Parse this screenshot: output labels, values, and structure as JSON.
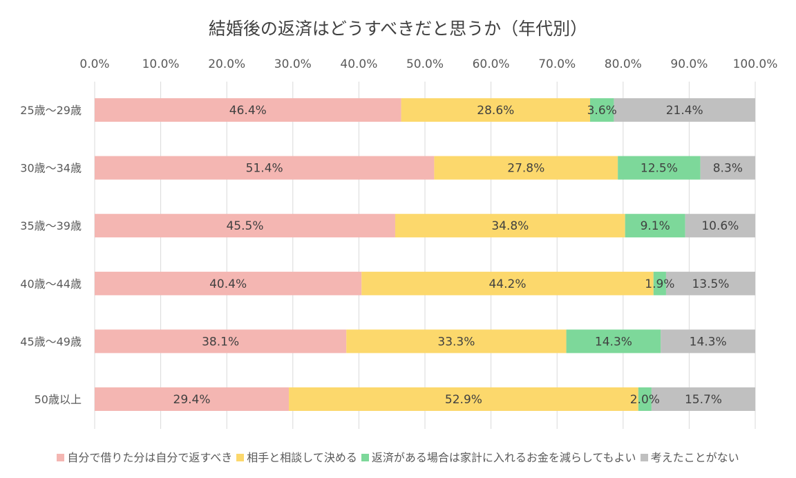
{
  "chart_data": {
    "type": "bar",
    "orientation": "horizontal",
    "stacked": "percent",
    "title": "結婚後の返済はどうすべきだと思うか（年代別）",
    "categories": [
      "25歳〜29歳",
      "30歳〜34歳",
      "35歳〜39歳",
      "40歳〜44歳",
      "45歳〜49歳",
      "50歳以上"
    ],
    "series": [
      {
        "name": "自分で借りた分は自分で返すべき",
        "color": "#F4B6B2",
        "values": [
          46.4,
          51.4,
          45.5,
          40.4,
          38.1,
          29.4
        ],
        "labels": [
          "46.4%",
          "51.4%",
          "45.5%",
          "40.4%",
          "38.1%",
          "29.4%"
        ]
      },
      {
        "name": "相手と相談して決める",
        "color": "#FCD86C",
        "values": [
          28.6,
          27.8,
          34.8,
          44.2,
          33.3,
          52.9
        ],
        "labels": [
          "28.6%",
          "27.8%",
          "34.8%",
          "44.2%",
          "33.3%",
          "52.9%"
        ]
      },
      {
        "name": "返済がある場合は家計に入れるお金を減らしてもよい",
        "color": "#7DD89A",
        "values": [
          3.6,
          12.5,
          9.1,
          1.9,
          14.3,
          2.0
        ],
        "labels": [
          "3.6%",
          "12.5%",
          "9.1%",
          "1.9%",
          "14.3%",
          "2.0%"
        ]
      },
      {
        "name": "考えたことがない",
        "color": "#C0C0C0",
        "values": [
          21.4,
          8.3,
          10.6,
          13.5,
          14.3,
          15.7
        ],
        "labels": [
          "21.4%",
          "8.3%",
          "10.6%",
          "13.5%",
          "14.3%",
          "15.7%"
        ]
      }
    ],
    "xlim": [
      0,
      100
    ],
    "x_ticks": [
      "0.0%",
      "10.0%",
      "20.0%",
      "30.0%",
      "40.0%",
      "50.0%",
      "60.0%",
      "70.0%",
      "80.0%",
      "90.0%",
      "100.0%"
    ],
    "x_axis_position": "top",
    "grid": true,
    "legend_position": "bottom"
  }
}
